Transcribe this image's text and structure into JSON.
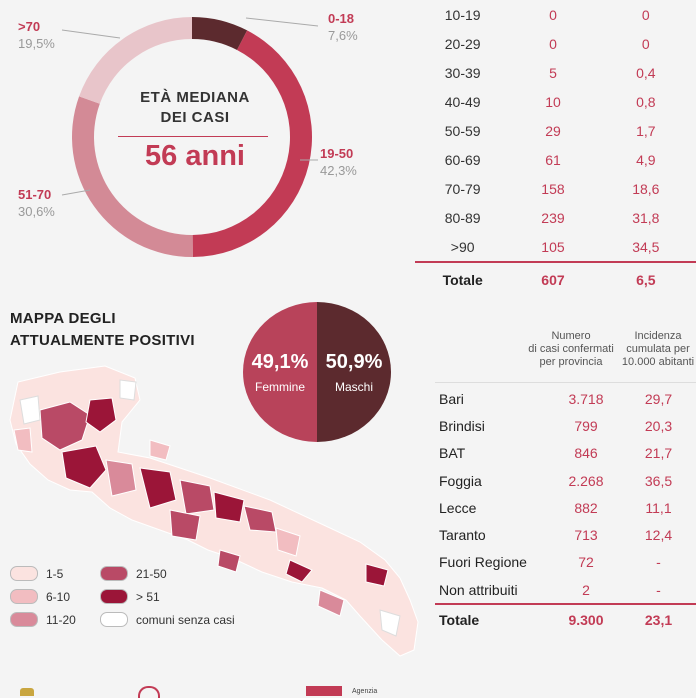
{
  "donut": {
    "center_line1": "ETÀ MEDIANA",
    "center_line2": "DEI CASI",
    "center_value": "56 anni",
    "segments": [
      {
        "label": ">70",
        "pct": "19,5%",
        "value": 19.5,
        "color": "#e8c5ca"
      },
      {
        "label": "0-18",
        "pct": "7,6%",
        "value": 7.6,
        "color": "#5c2a2e"
      },
      {
        "label": "19-50",
        "pct": "42,3%",
        "value": 42.3,
        "color": "#c23b55"
      },
      {
        "label": "51-70",
        "pct": "30,6%",
        "value": 30.6,
        "color": "#d38a96"
      }
    ]
  },
  "age_table": {
    "rows": [
      {
        "age": "10-19",
        "cases": "0",
        "incidence": "0"
      },
      {
        "age": "20-29",
        "cases": "0",
        "incidence": "0"
      },
      {
        "age": "30-39",
        "cases": "5",
        "incidence": "0,4"
      },
      {
        "age": "40-49",
        "cases": "10",
        "incidence": "0,8"
      },
      {
        "age": "50-59",
        "cases": "29",
        "incidence": "1,7"
      },
      {
        "age": "60-69",
        "cases": "61",
        "incidence": "4,9"
      },
      {
        "age": "70-79",
        "cases": "158",
        "incidence": "18,6"
      },
      {
        "age": "80-89",
        "cases": "239",
        "incidence": "31,8"
      },
      {
        "age": ">90",
        "cases": "105",
        "incidence": "34,5"
      }
    ],
    "total": {
      "label": "Totale",
      "cases": "607",
      "incidence": "6,5"
    }
  },
  "map": {
    "title_line1": "MAPPA DEGLI",
    "title_line2": "ATTUALMENTE POSITIVI",
    "legend": [
      {
        "label": "1-5",
        "color": "#fbe3e0"
      },
      {
        "label": "6-10",
        "color": "#f2bdc1"
      },
      {
        "label": "11-20",
        "color": "#d98a9a"
      },
      {
        "label": "21-50",
        "color": "#b94a66"
      },
      {
        "label": "> 51",
        "color": "#9b1538"
      },
      {
        "label": "comuni senza casi",
        "color": "#ffffff"
      }
    ]
  },
  "gender": {
    "female_pct": "49,1%",
    "female_label": "Femmine",
    "female_color": "#b8435a",
    "male_pct": "50,9%",
    "male_label": "Maschi",
    "male_color": "#5c2a2e"
  },
  "province_table": {
    "header_cases": "Numero\ndi casi confermati\nper provincia",
    "header_incidence": "Incidenza\ncumulata per\n10.000 abitanti",
    "rows": [
      {
        "name": "Bari",
        "cases": "3.718",
        "incidence": "29,7"
      },
      {
        "name": "Brindisi",
        "cases": "799",
        "incidence": "20,3"
      },
      {
        "name": "BAT",
        "cases": "846",
        "incidence": "21,7"
      },
      {
        "name": "Foggia",
        "cases": "2.268",
        "incidence": "36,5"
      },
      {
        "name": "Lecce",
        "cases": "882",
        "incidence": "11,1"
      },
      {
        "name": "Taranto",
        "cases": "713",
        "incidence": "12,4"
      },
      {
        "name": "Fuori Regione",
        "cases": "72",
        "incidence": "-"
      },
      {
        "name": "Non attribuiti",
        "cases": "2",
        "incidence": "-"
      }
    ],
    "total": {
      "label": "Totale",
      "cases": "9.300",
      "incidence": "23,1"
    }
  },
  "footer": {
    "agency_text": "Agenzia"
  }
}
